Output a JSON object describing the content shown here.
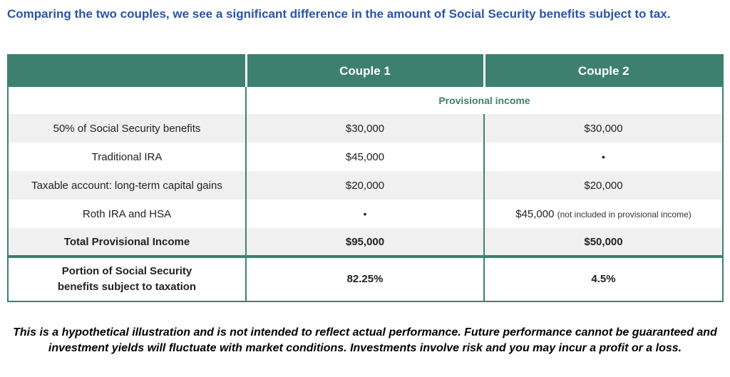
{
  "intro": "Comparing the two couples, we see a significant difference in the amount of Social Security benefits subject to tax.",
  "table": {
    "headers": [
      "",
      "Couple 1",
      "Couple 2"
    ],
    "subheader": "Provisional income",
    "rows": [
      {
        "label": "50% of Social Security benefits",
        "c1": "$30,000",
        "c2": "$30,000",
        "c2_note": ""
      },
      {
        "label": "Traditional IRA",
        "c1": "$45,000",
        "c2": "•",
        "c2_note": ""
      },
      {
        "label": "Taxable account: long-term capital gains",
        "c1": "$20,000",
        "c2": "$20,000",
        "c2_note": ""
      },
      {
        "label": "Roth IRA and HSA",
        "c1": "•",
        "c2": "$45,000",
        "c2_note": "(not included in provisional income)"
      }
    ],
    "total": {
      "label": "Total Provisional Income",
      "c1": "$95,000",
      "c2": "$50,000"
    },
    "portion": {
      "label_line1": "Portion of Social Security",
      "label_line2": "benefits subject to taxation",
      "c1": "82.25%",
      "c2": "4.5%"
    }
  },
  "disclaimer": "This is a hypothetical illustration and is not intended to reflect actual performance. Future performance cannot be guaranteed and investment yields will fluctuate with market conditions. Investments involve risk and you may incur a profit or a loss.",
  "colors": {
    "accent": "#3d8070",
    "intro_text": "#2b54a8",
    "row_alt": "#f0f0f0"
  }
}
